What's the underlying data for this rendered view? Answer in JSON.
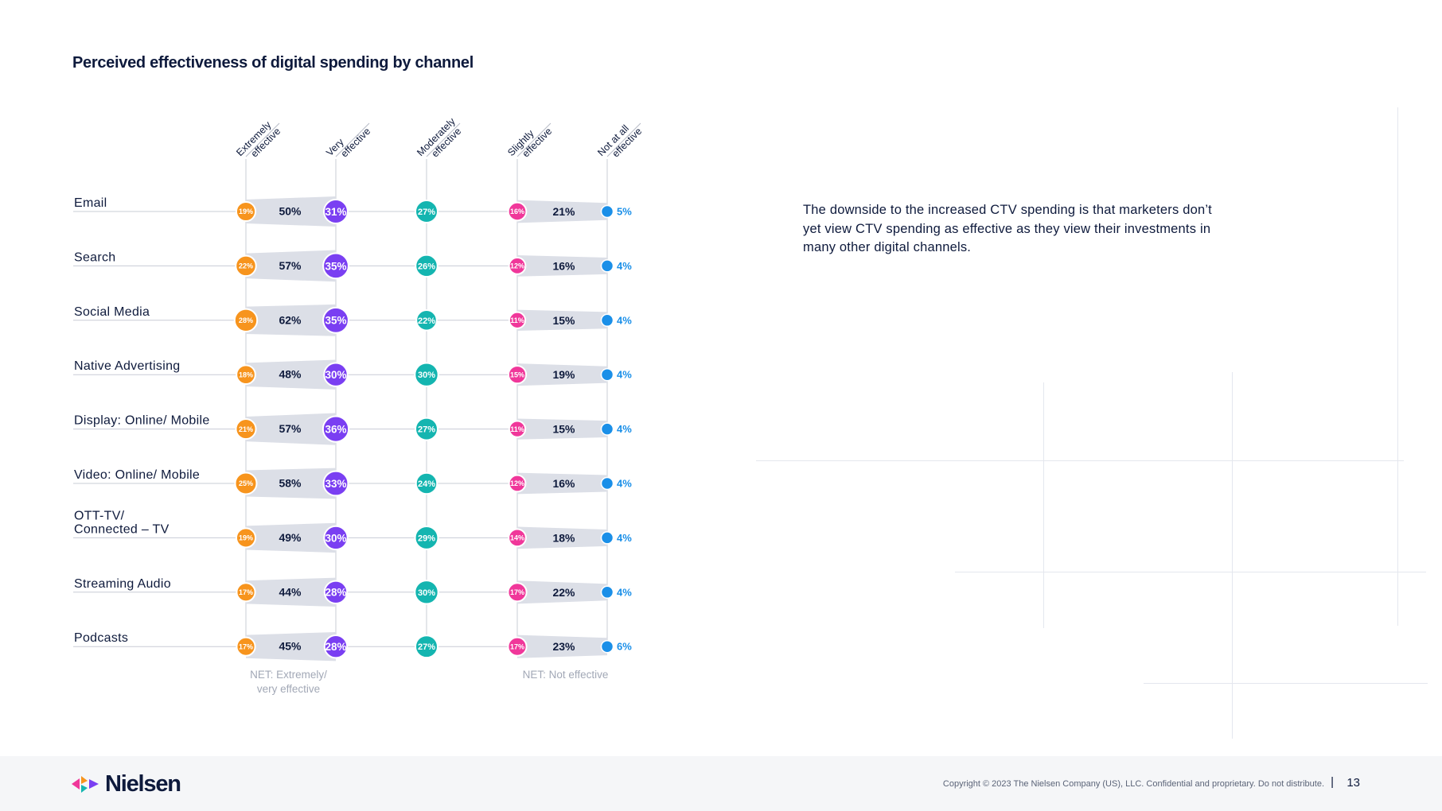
{
  "page": {
    "title": "Perceived effectiveness of digital spending by channel",
    "note": "The downside to the increased CTV spending is that marketers don’t yet view CTV spending as effective as they view their investments in many other digital channels.",
    "footer": {
      "logo_text": "Nielsen",
      "copyright": "Copyright © 2023 The Nielsen Company (US), LLC. Confidential and proprietary. Do not distribute.",
      "separator": "|",
      "page_number": "13"
    }
  },
  "chart_data": {
    "type": "scatter",
    "title": "Perceived effectiveness of digital spending by channel",
    "columns": [
      {
        "key": "extremely",
        "label_lines": [
          "Extremely",
          "effective"
        ],
        "color": "#f7941d"
      },
      {
        "key": "very",
        "label_lines": [
          "Very",
          "effective"
        ],
        "color": "#7a3ff2"
      },
      {
        "key": "moderately",
        "label_lines": [
          "Moderately",
          "effective"
        ],
        "color": "#14b5b0"
      },
      {
        "key": "slightly",
        "label_lines": [
          "Slightly",
          "effective"
        ],
        "color": "#f0379a"
      },
      {
        "key": "not_at_all",
        "label_lines": [
          "Not at all",
          "effective"
        ],
        "color": "#1a8fe8"
      }
    ],
    "net_labels": {
      "effective_lines": [
        "NET: Extremely/",
        "very effective"
      ],
      "not_effective": "NET: Not effective"
    },
    "rows": [
      {
        "label_lines": [
          "Email"
        ],
        "extremely": "19%",
        "very": "31%",
        "moderately": "27%",
        "slightly": "16%",
        "not_at_all": "5%",
        "net_effective": "50%",
        "net_not": "21%"
      },
      {
        "label_lines": [
          "Search"
        ],
        "extremely": "22%",
        "very": "35%",
        "moderately": "26%",
        "slightly": "12%",
        "not_at_all": "4%",
        "net_effective": "57%",
        "net_not": "16%"
      },
      {
        "label_lines": [
          "Social Media"
        ],
        "extremely": "28%",
        "very": "35%",
        "moderately": "22%",
        "slightly": "11%",
        "not_at_all": "4%",
        "net_effective": "62%",
        "net_not": "15%"
      },
      {
        "label_lines": [
          "Native Advertising"
        ],
        "extremely": "18%",
        "very": "30%",
        "moderately": "30%",
        "slightly": "15%",
        "not_at_all": "4%",
        "net_effective": "48%",
        "net_not": "19%"
      },
      {
        "label_lines": [
          "Display: Online/ Mobile"
        ],
        "extremely": "21%",
        "very": "36%",
        "moderately": "27%",
        "slightly": "11%",
        "not_at_all": "4%",
        "net_effective": "57%",
        "net_not": "15%"
      },
      {
        "label_lines": [
          "Video: Online/ Mobile"
        ],
        "extremely": "25%",
        "very": "33%",
        "moderately": "24%",
        "slightly": "12%",
        "not_at_all": "4%",
        "net_effective": "58%",
        "net_not": "16%"
      },
      {
        "label_lines": [
          "OTT-TV/",
          "Connected – TV"
        ],
        "extremely": "19%",
        "very": "30%",
        "moderately": "29%",
        "slightly": "14%",
        "not_at_all": "4%",
        "net_effective": "49%",
        "net_not": "18%"
      },
      {
        "label_lines": [
          "Streaming Audio"
        ],
        "extremely": "17%",
        "very": "28%",
        "moderately": "30%",
        "slightly": "17%",
        "not_at_all": "4%",
        "net_effective": "44%",
        "net_not": "22%"
      },
      {
        "label_lines": [
          "Podcasts"
        ],
        "extremely": "17%",
        "very": "28%",
        "moderately": "27%",
        "slightly": "17%",
        "not_at_all": "6%",
        "net_effective": "45%",
        "net_not": "23%"
      }
    ]
  }
}
